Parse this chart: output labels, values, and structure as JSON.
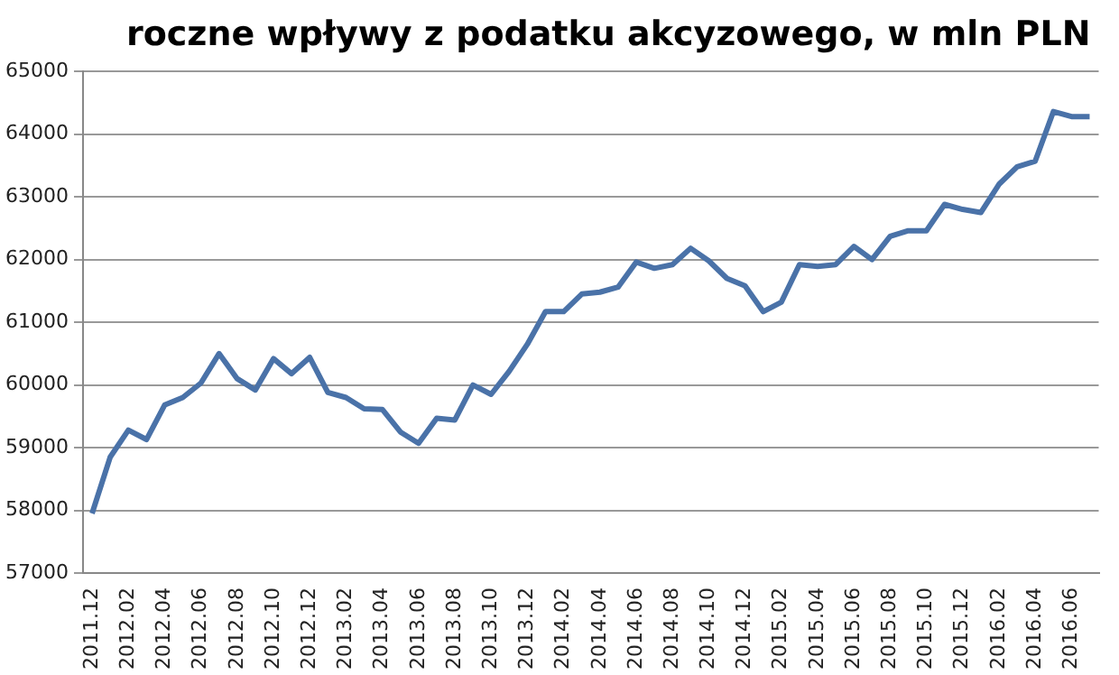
{
  "chart_data": {
    "type": "line",
    "title": "roczne wpływy z podatku akcyzowego, w mln PLN",
    "categories": [
      "2011.12",
      null,
      "2012.02",
      null,
      "2012.04",
      null,
      "2012.06",
      null,
      "2012.08",
      null,
      "2012.10",
      null,
      "2012.12",
      null,
      "2013.02",
      null,
      "2013.04",
      null,
      "2013.06",
      null,
      "2013.08",
      null,
      "2013.10",
      null,
      "2013.12",
      null,
      "2014.02",
      null,
      "2014.04",
      null,
      "2014.06",
      null,
      "2014.08",
      null,
      "2014.10",
      null,
      "2014.12",
      null,
      "2015.02",
      null,
      "2015.04",
      null,
      "2015.06",
      null,
      "2015.08",
      null,
      "2015.10",
      null,
      "2015.12",
      null,
      "2016.02",
      null,
      "2016.04",
      null,
      "2016.06",
      null
    ],
    "series": [
      {
        "color": "#4a72a8",
        "values": [
          57950,
          58850,
          59280,
          59130,
          59680,
          59800,
          60030,
          60500,
          60100,
          59920,
          60420,
          60180,
          60440,
          59880,
          59800,
          59620,
          59610,
          59250,
          59070,
          59470,
          59440,
          60000,
          59850,
          60220,
          60650,
          61170,
          61170,
          61450,
          61480,
          61560,
          61960,
          61860,
          61920,
          62180,
          61980,
          61700,
          61580,
          61170,
          61320,
          61920,
          61890,
          61920,
          62210,
          62000,
          62370,
          62460,
          62460,
          62880,
          62800,
          62750,
          63200,
          63480,
          63570,
          64360,
          64280,
          64280
        ]
      }
    ],
    "ylim": [
      57000,
      65000
    ],
    "yticks": [
      57000,
      58000,
      59000,
      60000,
      61000,
      62000,
      63000,
      64000,
      65000
    ],
    "grid": "y",
    "legend": false,
    "marker": "none",
    "line_style": "solid"
  }
}
